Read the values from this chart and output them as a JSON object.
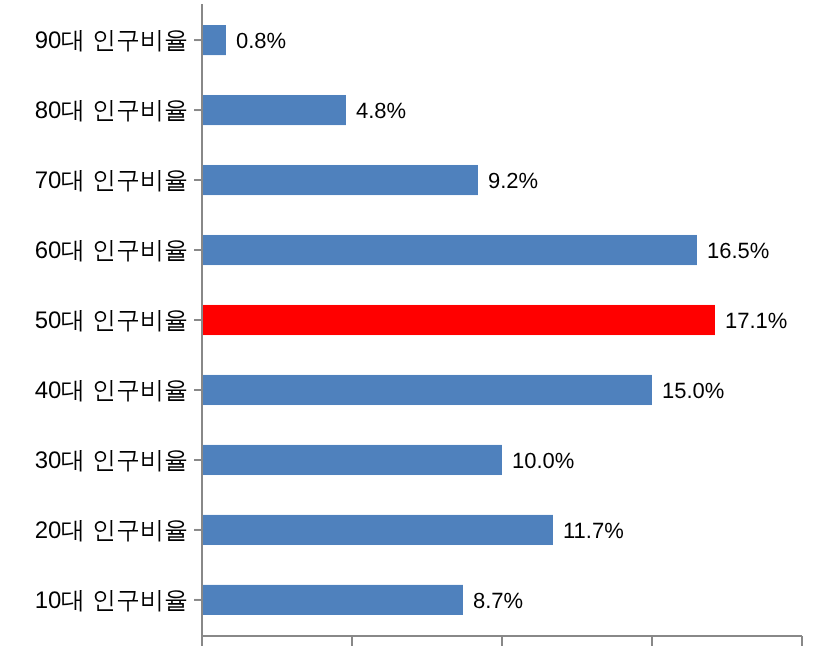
{
  "chart_data": {
    "type": "bar",
    "orientation": "horizontal",
    "categories": [
      "90대 인구비율",
      "80대 인구비율",
      "70대 인구비율",
      "60대 인구비율",
      "50대 인구비율",
      "40대 인구비율",
      "30대 인구비율",
      "20대 인구비율",
      "10대 인구비율"
    ],
    "values": [
      0.8,
      4.8,
      9.2,
      16.5,
      17.1,
      15.0,
      10.0,
      11.7,
      8.7
    ],
    "colors": [
      "#4f81bd",
      "#4f81bd",
      "#4f81bd",
      "#4f81bd",
      "#ff0000",
      "#4f81bd",
      "#4f81bd",
      "#4f81bd",
      "#4f81bd"
    ],
    "value_labels": [
      "0.8%",
      "4.8%",
      "9.2%",
      "16.5%",
      "17.1%",
      "15.0%",
      "10.0%",
      "11.7%",
      "8.7%"
    ],
    "xlim": [
      0,
      20
    ],
    "xticks": [
      {
        "value": 0,
        "label": null
      },
      {
        "value": 5,
        "label": null
      },
      {
        "value": 10,
        "label": null
      },
      {
        "value": 15,
        "label": null
      },
      {
        "value": 20,
        "label": null
      }
    ],
    "tick_labels": "y"
  }
}
